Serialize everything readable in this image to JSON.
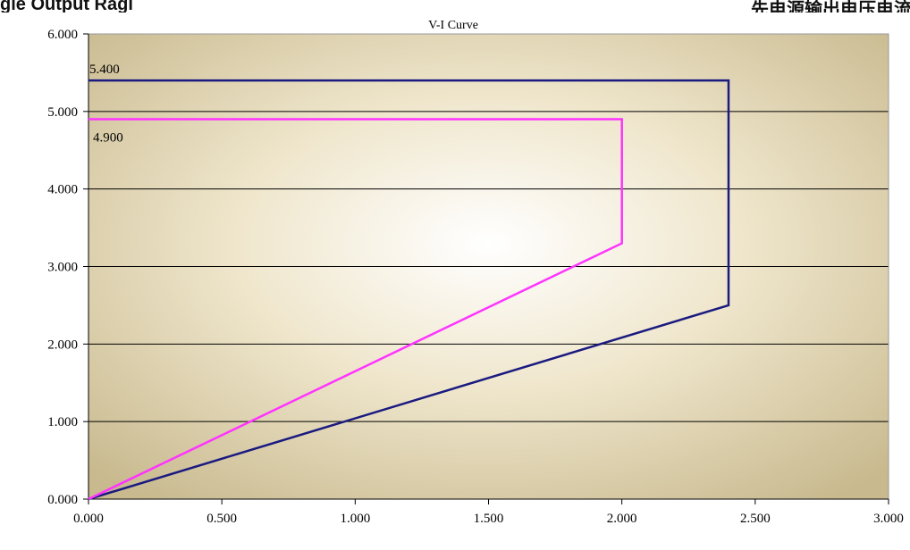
{
  "header": {
    "left_text": "gle Output Ragi",
    "right_text": "先电源输出电压电流"
  },
  "chart_data": {
    "type": "line",
    "title": "V-I Curve",
    "xlabel": "",
    "ylabel": "",
    "xlim": [
      0,
      3
    ],
    "ylim": [
      0,
      6
    ],
    "x_ticks": [
      0,
      0.5,
      1,
      1.5,
      2,
      2.5,
      3
    ],
    "y_ticks": [
      0,
      1,
      2,
      3,
      4,
      5,
      6
    ],
    "x_tick_labels": [
      "0.000",
      "0.500",
      "1.000",
      "1.500",
      "2.000",
      "2.500",
      "3.000"
    ],
    "y_tick_labels": [
      "0.000",
      "1.000",
      "2.000",
      "3.000",
      "4.000",
      "5.000",
      "6.000"
    ],
    "grid": "horizontal",
    "background": "radial-gradient-beige",
    "series": [
      {
        "color": "#1a1a80",
        "points": [
          [
            0,
            0
          ],
          [
            2.4,
            2.5
          ],
          [
            2.4,
            5.4
          ],
          [
            0,
            5.4
          ]
        ],
        "label": "5.400"
      },
      {
        "color": "#ff33ff",
        "points": [
          [
            0,
            0
          ],
          [
            2.0,
            3.3
          ],
          [
            2.0,
            4.9
          ],
          [
            0,
            4.9
          ]
        ],
        "label": "4.900"
      }
    ]
  },
  "colors": {
    "plot_center": "#ffffff",
    "plot_mid": "#efe6cc",
    "plot_edge": "#c8b98e",
    "grid_line": "#000000",
    "axis_line": "#000000"
  }
}
